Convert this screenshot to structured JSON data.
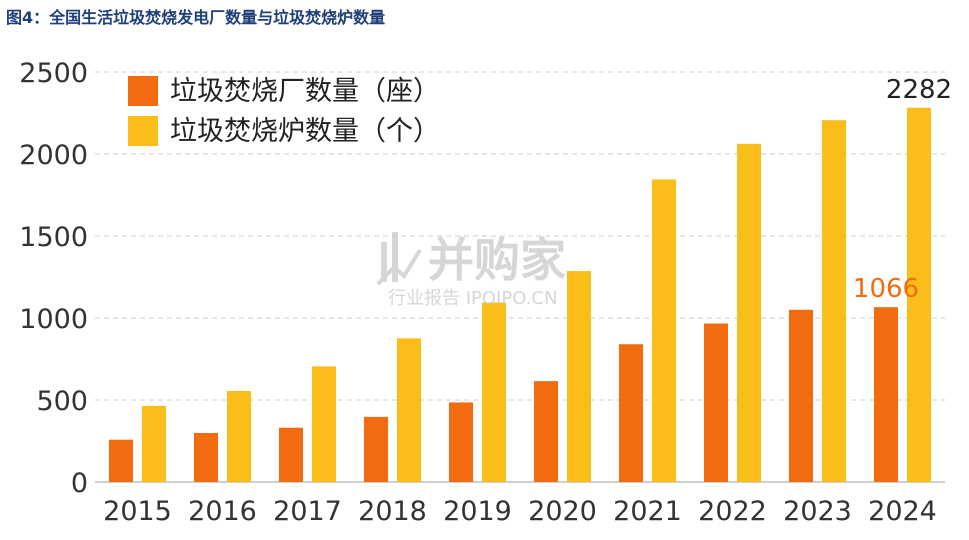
{
  "figure_title": "图4：全国生活垃圾焚烧发电厂数量与垃圾焚烧炉数量",
  "watermark": {
    "main": "并购家",
    "sub": "行业报告 IPOIPO.CN"
  },
  "colors": {
    "plants": "#f26b0f",
    "furnaces": "#fbbd1a",
    "grid": "#d7d7d7",
    "title": "#1f3f7a"
  },
  "chart_data": {
    "type": "bar",
    "categories": [
      "2015",
      "2016",
      "2017",
      "2018",
      "2019",
      "2020",
      "2021",
      "2022",
      "2023",
      "2024"
    ],
    "series": [
      {
        "name": "垃圾焚烧厂数量（座）",
        "values": [
          258,
          299,
          331,
          397,
          485,
          615,
          840,
          966,
          1050,
          1066
        ],
        "color": "#f26b0f"
      },
      {
        "name": "垃圾焚烧炉数量（个）",
        "values": [
          464,
          555,
          705,
          876,
          1094,
          1286,
          1845,
          2062,
          2206,
          2282
        ],
        "color": "#fbbd1a"
      }
    ],
    "ylim": [
      0,
      2500
    ],
    "yticks": [
      0,
      500,
      1000,
      1500,
      2000,
      2500
    ],
    "grid": "horizontal dashed",
    "legend_placement": "top-left",
    "annotations": [
      {
        "series": 0,
        "index": 9,
        "text": "1066"
      },
      {
        "series": 1,
        "index": 9,
        "text": "2282"
      }
    ]
  }
}
